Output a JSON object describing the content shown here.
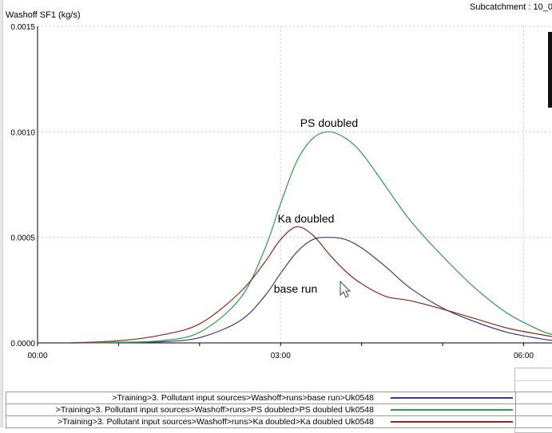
{
  "header": {
    "y_axis_label": "Washoff SF1 (kg/s)",
    "subcatchment_label": "Subcatchment : 10_0"
  },
  "colors": {
    "base_run": "#3a3a8c",
    "ps_doubled": "#2e9a4a",
    "ka_doubled": "#8b2a1f",
    "grid": "#c8c8c8"
  },
  "chart_data": {
    "type": "line",
    "ylabel": "Washoff SF1 (kg/s)",
    "xlabel": "",
    "x_ticks": [
      "00:00",
      "03:00",
      "06:00"
    ],
    "y_ticks": [
      "0.0000",
      "0.0005",
      "0.0010",
      "0.0015"
    ],
    "xlim_hours": [
      0,
      6.35
    ],
    "ylim": [
      0,
      0.0015
    ],
    "annotations": [
      "PS doubled",
      "Ka doubled",
      "base run"
    ],
    "series": [
      {
        "name": "base run",
        "x_hours": [
          0.4,
          1.0,
          1.5,
          2.0,
          2.5,
          2.8,
          3.0,
          3.2,
          3.4,
          3.6,
          3.8,
          4.0,
          4.3,
          4.6,
          5.0,
          5.4,
          5.8,
          6.2,
          6.35
        ],
        "values": [
          0.0,
          1e-06,
          5e-06,
          2.5e-05,
          0.000105,
          0.00022,
          0.00033,
          0.00043,
          0.00049,
          0.0005,
          0.00049,
          0.00045,
          0.00036,
          0.00026,
          0.000165,
          0.0001,
          5e-05,
          2e-05,
          1.2e-05
        ]
      },
      {
        "name": "PS doubled",
        "x_hours": [
          0.4,
          1.0,
          1.5,
          2.0,
          2.5,
          2.8,
          3.0,
          3.2,
          3.4,
          3.6,
          3.8,
          4.0,
          4.3,
          4.6,
          5.0,
          5.4,
          5.8,
          6.2,
          6.35
        ],
        "values": [
          0.0,
          3e-06,
          1e-05,
          5e-05,
          0.00021,
          0.00044,
          0.00066,
          0.00086,
          0.00097,
          0.001,
          0.00097,
          0.0009,
          0.00074,
          0.00058,
          0.00041,
          0.00026,
          0.00014,
          6e-05,
          4e-05
        ]
      },
      {
        "name": "Ka doubled",
        "x_hours": [
          0.4,
          1.0,
          1.5,
          2.0,
          2.5,
          2.8,
          3.0,
          3.2,
          3.4,
          3.6,
          3.8,
          4.0,
          4.3,
          4.6,
          5.0,
          5.4,
          5.8,
          6.2,
          6.35
        ],
        "values": [
          0.0,
          1e-05,
          3.5e-05,
          9e-05,
          0.00024,
          0.00038,
          0.00049,
          0.00055,
          0.00051,
          0.00042,
          0.00034,
          0.00028,
          0.00022,
          0.0002,
          0.00016,
          0.000115,
          7e-05,
          4e-05,
          3e-05
        ]
      }
    ]
  },
  "legend": {
    "rows": [
      {
        "label": ">Training>3. Pollutant input sources>Washoff>runs>base run>Uk0548",
        "series": "base_run"
      },
      {
        "label": ">Training>3. Pollutant input sources>Washoff>runs>PS doubled>PS doubled Uk0548",
        "series": "ps_doubled"
      },
      {
        "label": ">Training>3. Pollutant input sources>Washoff>runs>Ka doubled>Ka doubled Uk0548",
        "series": "ka_doubled"
      }
    ]
  }
}
